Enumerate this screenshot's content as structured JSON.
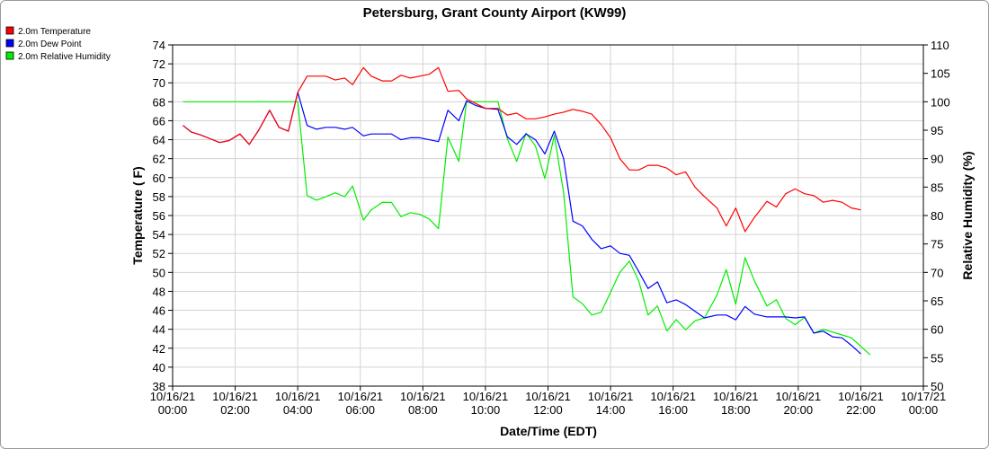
{
  "chart_data": {
    "type": "line",
    "title": "Petersburg, Grant County Airport (KW99)",
    "xlabel": "Date/Time (EDT)",
    "ylabel": "Temperature ( F)",
    "y2label": "Relative Humidity (%)",
    "ylim": [
      38,
      74
    ],
    "y2lim": [
      50,
      110
    ],
    "yticks": [
      38,
      40,
      42,
      44,
      46,
      48,
      50,
      52,
      54,
      56,
      58,
      60,
      62,
      64,
      66,
      68,
      70,
      72,
      74
    ],
    "y2ticks": [
      50,
      55,
      60,
      65,
      70,
      75,
      80,
      85,
      90,
      95,
      100,
      105,
      110
    ],
    "xlim": [
      0,
      24
    ],
    "xticks": [
      {
        "x": 0,
        "date": "10/16/21",
        "time": "00:00"
      },
      {
        "x": 2,
        "date": "10/16/21",
        "time": "02:00"
      },
      {
        "x": 4,
        "date": "10/16/21",
        "time": "04:00"
      },
      {
        "x": 6,
        "date": "10/16/21",
        "time": "06:00"
      },
      {
        "x": 8,
        "date": "10/16/21",
        "time": "08:00"
      },
      {
        "x": 10,
        "date": "10/16/21",
        "time": "10:00"
      },
      {
        "x": 12,
        "date": "10/16/21",
        "time": "12:00"
      },
      {
        "x": 14,
        "date": "10/16/21",
        "time": "14:00"
      },
      {
        "x": 16,
        "date": "10/16/21",
        "time": "16:00"
      },
      {
        "x": 18,
        "date": "10/16/21",
        "time": "18:00"
      },
      {
        "x": 20,
        "date": "10/16/21",
        "time": "20:00"
      },
      {
        "x": 22,
        "date": "10/16/21",
        "time": "22:00"
      },
      {
        "x": 24,
        "date": "10/17/21",
        "time": "00:00"
      }
    ],
    "grid": true,
    "legend_position": "top-left",
    "series": [
      {
        "name": "2.0m Temperature",
        "color": "#ff0000",
        "axis": "left",
        "points": [
          [
            0.33,
            65.5
          ],
          [
            0.6,
            64.8
          ],
          [
            0.9,
            64.5
          ],
          [
            1.2,
            64.1
          ],
          [
            1.5,
            63.7
          ],
          [
            1.8,
            63.9
          ],
          [
            2.15,
            64.6
          ],
          [
            2.45,
            63.5
          ],
          [
            2.75,
            65
          ],
          [
            3.1,
            67.1
          ],
          [
            3.4,
            65.3
          ],
          [
            3.7,
            64.9
          ],
          [
            4.0,
            69
          ],
          [
            4.3,
            70.7
          ],
          [
            4.6,
            70.7
          ],
          [
            4.9,
            70.7
          ],
          [
            5.2,
            70.3
          ],
          [
            5.5,
            70.5
          ],
          [
            5.75,
            69.8
          ],
          [
            6.1,
            71.6
          ],
          [
            6.35,
            70.7
          ],
          [
            6.7,
            70.2
          ],
          [
            7.0,
            70.2
          ],
          [
            7.3,
            70.8
          ],
          [
            7.6,
            70.5
          ],
          [
            7.9,
            70.7
          ],
          [
            8.2,
            70.9
          ],
          [
            8.5,
            71.6
          ],
          [
            8.8,
            69.1
          ],
          [
            9.15,
            69.2
          ],
          [
            9.4,
            68.3
          ],
          [
            9.7,
            67.8
          ],
          [
            10.0,
            67.3
          ],
          [
            10.4,
            67.3
          ],
          [
            10.7,
            66.6
          ],
          [
            11.0,
            66.8
          ],
          [
            11.3,
            66.2
          ],
          [
            11.6,
            66.2
          ],
          [
            11.9,
            66.4
          ],
          [
            12.2,
            66.7
          ],
          [
            12.5,
            66.9
          ],
          [
            12.8,
            67.2
          ],
          [
            13.1,
            67.0
          ],
          [
            13.4,
            66.7
          ],
          [
            13.7,
            65.6
          ],
          [
            14.0,
            64.2
          ],
          [
            14.3,
            62.0
          ],
          [
            14.6,
            60.8
          ],
          [
            14.9,
            60.8
          ],
          [
            15.2,
            61.3
          ],
          [
            15.5,
            61.3
          ],
          [
            15.8,
            61.0
          ],
          [
            16.1,
            60.3
          ],
          [
            16.4,
            60.6
          ],
          [
            16.7,
            59.0
          ],
          [
            17.0,
            58.0
          ],
          [
            17.4,
            56.8
          ],
          [
            17.7,
            54.9
          ],
          [
            18.0,
            56.8
          ],
          [
            18.3,
            54.3
          ],
          [
            18.6,
            55.8
          ],
          [
            19.0,
            57.5
          ],
          [
            19.3,
            56.9
          ],
          [
            19.6,
            58.3
          ],
          [
            19.9,
            58.8
          ],
          [
            20.2,
            58.3
          ],
          [
            20.5,
            58.1
          ],
          [
            20.8,
            57.4
          ],
          [
            21.1,
            57.6
          ],
          [
            21.4,
            57.4
          ],
          [
            21.7,
            56.8
          ],
          [
            22.0,
            56.6
          ]
        ]
      },
      {
        "name": "2.0m Dew Point",
        "color": "#0000ff",
        "axis": "left",
        "points": [
          [
            0.33,
            65.5
          ],
          [
            0.6,
            64.8
          ],
          [
            0.9,
            64.5
          ],
          [
            1.2,
            64.1
          ],
          [
            1.5,
            63.7
          ],
          [
            1.8,
            63.9
          ],
          [
            2.15,
            64.6
          ],
          [
            2.45,
            63.5
          ],
          [
            2.75,
            65
          ],
          [
            3.1,
            67.1
          ],
          [
            3.4,
            65.3
          ],
          [
            3.7,
            64.9
          ],
          [
            4.0,
            69
          ],
          [
            4.3,
            65.5
          ],
          [
            4.6,
            65.1
          ],
          [
            4.9,
            65.3
          ],
          [
            5.2,
            65.3
          ],
          [
            5.5,
            65.1
          ],
          [
            5.75,
            65.3
          ],
          [
            6.1,
            64.4
          ],
          [
            6.35,
            64.6
          ],
          [
            6.7,
            64.6
          ],
          [
            7.0,
            64.6
          ],
          [
            7.3,
            64.0
          ],
          [
            7.6,
            64.2
          ],
          [
            7.9,
            64.2
          ],
          [
            8.2,
            64.0
          ],
          [
            8.5,
            63.8
          ],
          [
            8.8,
            67.1
          ],
          [
            9.15,
            66.0
          ],
          [
            9.4,
            68.1
          ],
          [
            9.7,
            67.6
          ],
          [
            10.0,
            67.3
          ],
          [
            10.4,
            67.2
          ],
          [
            10.7,
            64.3
          ],
          [
            11.0,
            63.5
          ],
          [
            11.3,
            64.6
          ],
          [
            11.6,
            64.0
          ],
          [
            11.9,
            62.5
          ],
          [
            12.2,
            64.9
          ],
          [
            12.5,
            62.0
          ],
          [
            12.8,
            55.4
          ],
          [
            13.1,
            54.9
          ],
          [
            13.4,
            53.5
          ],
          [
            13.7,
            52.5
          ],
          [
            14.0,
            52.8
          ],
          [
            14.3,
            52.0
          ],
          [
            14.6,
            51.8
          ],
          [
            14.9,
            50.1
          ],
          [
            15.2,
            48.3
          ],
          [
            15.5,
            49.0
          ],
          [
            15.8,
            46.8
          ],
          [
            16.1,
            47.1
          ],
          [
            16.4,
            46.6
          ],
          [
            16.7,
            45.9
          ],
          [
            17.0,
            45.2
          ],
          [
            17.4,
            45.5
          ],
          [
            17.7,
            45.5
          ],
          [
            18.0,
            45.0
          ],
          [
            18.3,
            46.4
          ],
          [
            18.6,
            45.6
          ],
          [
            19.0,
            45.3
          ],
          [
            19.3,
            45.3
          ],
          [
            19.6,
            45.3
          ],
          [
            19.9,
            45.2
          ],
          [
            20.2,
            45.3
          ],
          [
            20.5,
            43.6
          ],
          [
            20.8,
            43.8
          ],
          [
            21.1,
            43.2
          ],
          [
            21.4,
            43.1
          ],
          [
            21.7,
            42.3
          ],
          [
            22.0,
            41.4
          ]
        ]
      },
      {
        "name": "2.0m Relative Humidity",
        "color": "#00ee00",
        "axis": "right",
        "points": [
          [
            0.33,
            100
          ],
          [
            4.0,
            100
          ],
          [
            4.3,
            83.5
          ],
          [
            4.6,
            82.7
          ],
          [
            4.9,
            83.3
          ],
          [
            5.2,
            84.0
          ],
          [
            5.5,
            83.3
          ],
          [
            5.75,
            85.2
          ],
          [
            6.1,
            79.2
          ],
          [
            6.35,
            81.0
          ],
          [
            6.7,
            82.3
          ],
          [
            7.0,
            82.3
          ],
          [
            7.3,
            79.8
          ],
          [
            7.6,
            80.5
          ],
          [
            7.9,
            80.2
          ],
          [
            8.2,
            79.4
          ],
          [
            8.5,
            77.7
          ],
          [
            8.8,
            93.8
          ],
          [
            9.15,
            89.5
          ],
          [
            9.4,
            100
          ],
          [
            9.7,
            100
          ],
          [
            10.0,
            100
          ],
          [
            10.4,
            100
          ],
          [
            10.7,
            93.5
          ],
          [
            11.0,
            89.5
          ],
          [
            11.3,
            94.5
          ],
          [
            11.6,
            92.2
          ],
          [
            11.9,
            86.5
          ],
          [
            12.2,
            94.1
          ],
          [
            12.5,
            84.0
          ],
          [
            12.8,
            65.7
          ],
          [
            13.1,
            64.5
          ],
          [
            13.4,
            62.5
          ],
          [
            13.7,
            63.0
          ],
          [
            14.0,
            66.5
          ],
          [
            14.3,
            70.0
          ],
          [
            14.6,
            72.0
          ],
          [
            14.9,
            68.5
          ],
          [
            15.2,
            62.5
          ],
          [
            15.5,
            64.1
          ],
          [
            15.8,
            59.7
          ],
          [
            16.1,
            61.7
          ],
          [
            16.4,
            59.9
          ],
          [
            16.7,
            61.5
          ],
          [
            17.0,
            62.0
          ],
          [
            17.4,
            66.0
          ],
          [
            17.7,
            70.5
          ],
          [
            18.0,
            64.4
          ],
          [
            18.3,
            72.6
          ],
          [
            18.6,
            68.5
          ],
          [
            19.0,
            64.1
          ],
          [
            19.3,
            65.2
          ],
          [
            19.6,
            61.9
          ],
          [
            19.9,
            60.8
          ],
          [
            20.2,
            62.1
          ],
          [
            20.5,
            59.3
          ],
          [
            20.8,
            60.0
          ],
          [
            21.1,
            59.5
          ],
          [
            21.4,
            59.0
          ],
          [
            21.7,
            58.5
          ],
          [
            22.0,
            57.0
          ],
          [
            22.3,
            55.5
          ]
        ]
      }
    ]
  }
}
